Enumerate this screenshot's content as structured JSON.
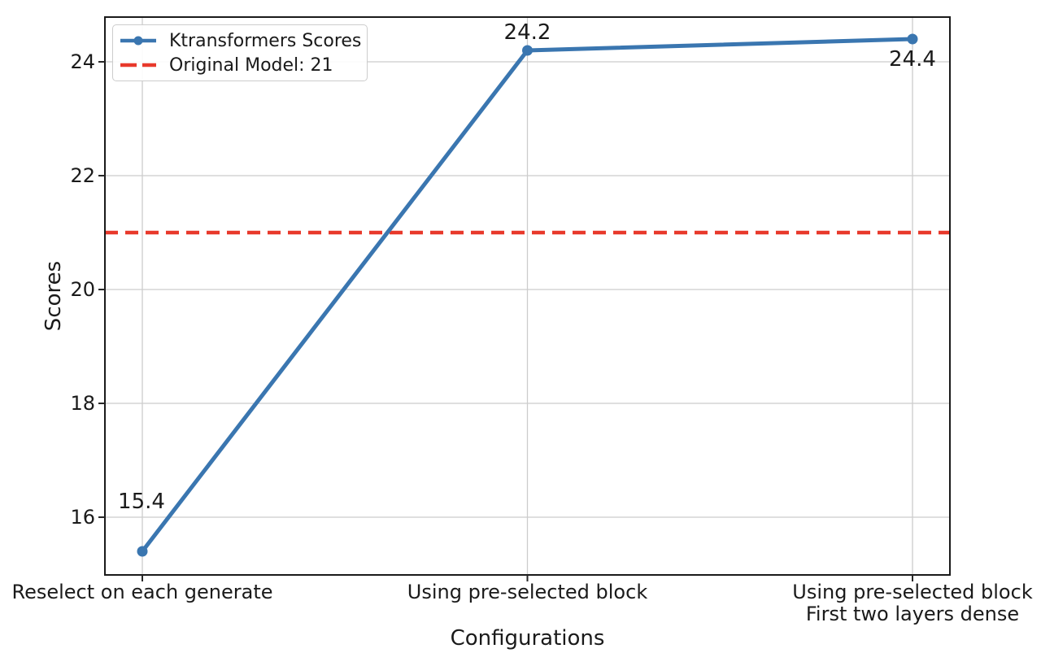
{
  "chart_data": {
    "type": "line",
    "title": "",
    "xlabel": "Configurations",
    "ylabel": "Scores",
    "categories": [
      "Reselect on each generate",
      "Using pre-selected block",
      "Using pre-selected block\nFirst two layers dense"
    ],
    "series": [
      {
        "name": "Ktransformers Scores",
        "values": [
          15.4,
          24.2,
          24.4
        ],
        "data_labels": [
          "15.4",
          "24.2",
          "24.4"
        ],
        "color": "#3a76b0",
        "marker": "circle"
      }
    ],
    "reference_line": {
      "label": "Original Model: 21",
      "value": 21,
      "color": "#e8392b",
      "style": "dashed"
    },
    "yticks": [
      16,
      18,
      20,
      22,
      24
    ],
    "ylim": [
      14.986,
      24.786
    ],
    "grid": true,
    "legend_position": "upper-left",
    "colors": {
      "grid": "#cccccc",
      "spine": "#1a1a1a",
      "text": "#1a1a1a"
    }
  }
}
